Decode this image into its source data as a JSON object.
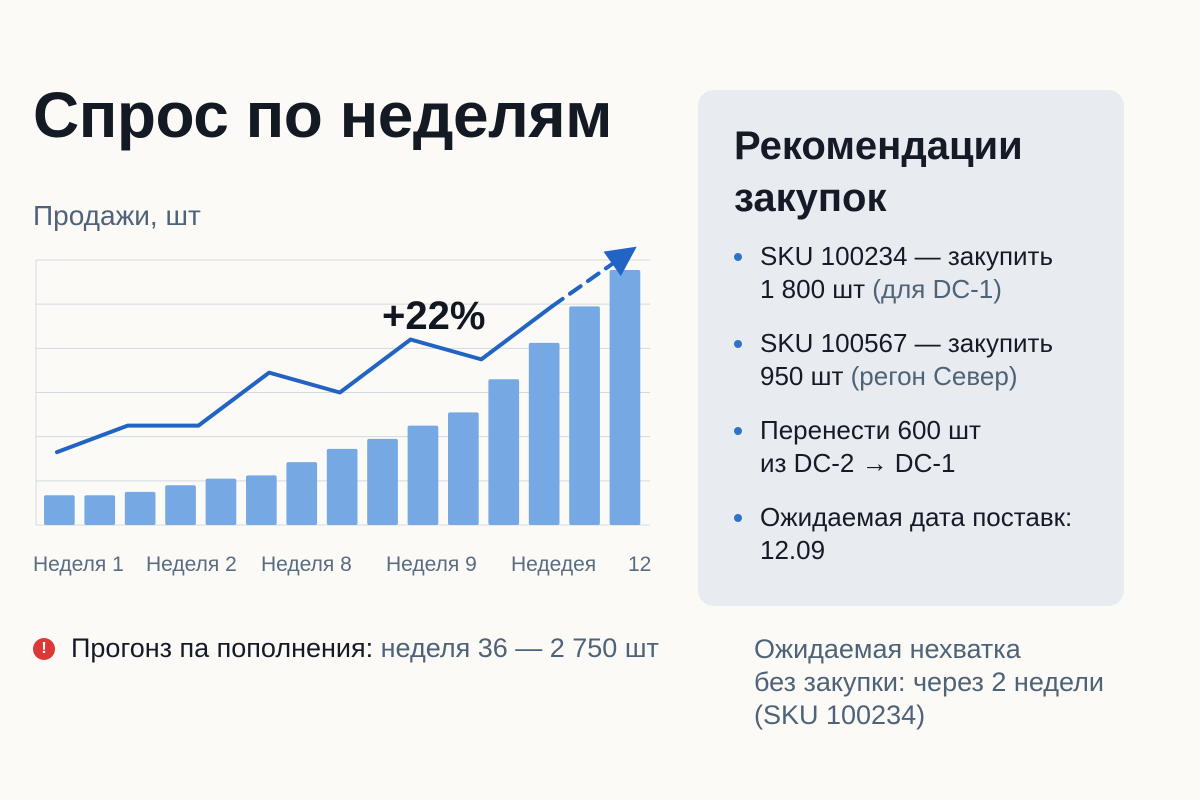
{
  "page": {
    "title": "Спрос по неделям"
  },
  "chart_data": {
    "type": "bar",
    "ylabel": "Продажи, шт",
    "xlabel": "",
    "x_tick_labels": [
      "Неделя 1",
      "Неделя 2",
      "Неделя 8",
      "Неделя 9",
      "Недедея",
      "12"
    ],
    "series": [
      {
        "kind": "bar",
        "values": [
          9,
          9,
          10,
          12,
          14,
          15,
          19,
          23,
          26,
          30,
          34,
          44,
          55,
          66,
          77
        ]
      },
      {
        "kind": "line",
        "values": [
          22,
          30,
          30,
          46,
          40,
          56,
          50,
          66
        ],
        "projected_trend": "dashed-arrow"
      }
    ],
    "annotation": "+22%",
    "grid": true,
    "colors": {
      "bars": "#76a9e3",
      "line": "#2264c3",
      "grid": "#d4d9df"
    }
  },
  "forecast": {
    "label": "Прогонз па пополнения:",
    "value": "неделя 36 — 2 750 шт",
    "icon": "alert-icon"
  },
  "recommendations": {
    "title": "Рекомендации закупок",
    "items": [
      {
        "lines": [
          "SKU 100234 — закупить",
          "1 800 шт"
        ],
        "note": "(для DC-1)"
      },
      {
        "lines": [
          "SKU 100567 — закупить",
          "950 шт"
        ],
        "note": "(регон Север)"
      },
      {
        "lines": [
          "Перенести 600 шт",
          "из DC-2 → DC-1"
        ],
        "note": ""
      },
      {
        "lines": [
          "Ожидаемая дата поставк:",
          "12.09"
        ],
        "note": ""
      }
    ]
  },
  "shortage": {
    "lines": [
      "Ожидаемая нехватка",
      "без закупки: через 2 недели",
      "(SKU 100234)"
    ]
  }
}
